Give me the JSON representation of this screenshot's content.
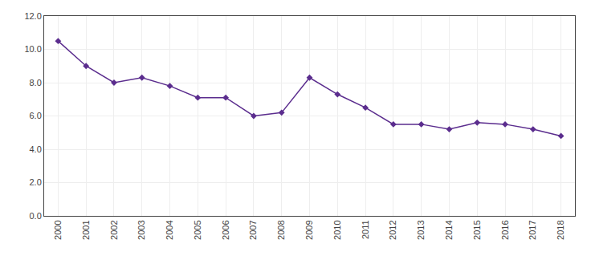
{
  "chart_data": {
    "type": "line",
    "x": [
      2000,
      2001,
      2002,
      2003,
      2004,
      2005,
      2006,
      2007,
      2008,
      2009,
      2010,
      2011,
      2012,
      2013,
      2014,
      2015,
      2016,
      2017,
      2018
    ],
    "values": [
      10.5,
      9.0,
      8.0,
      8.3,
      7.8,
      7.1,
      7.1,
      6.0,
      6.2,
      8.3,
      7.3,
      6.5,
      5.5,
      5.5,
      5.2,
      5.6,
      5.5,
      5.2,
      4.8
    ],
    "color": "#5b2d8e",
    "marker": "diamond",
    "xlim": [
      1999.5,
      2018.5
    ],
    "xticks": [
      2000,
      2001,
      2002,
      2003,
      2004,
      2005,
      2006,
      2007,
      2008,
      2009,
      2010,
      2011,
      2012,
      2013,
      2014,
      2015,
      2016,
      2017,
      2018
    ],
    "ylim": [
      0,
      12
    ],
    "yticks": [
      {
        "value": 0,
        "label": "0.0"
      },
      {
        "value": 2,
        "label": "2.0"
      },
      {
        "value": 4,
        "label": "4.0"
      },
      {
        "value": 6,
        "label": "6.0"
      },
      {
        "value": 8,
        "label": "8.0"
      },
      {
        "value": 10,
        "label": "10.0"
      },
      {
        "value": 12,
        "label": "12.0"
      }
    ],
    "grid": true
  }
}
